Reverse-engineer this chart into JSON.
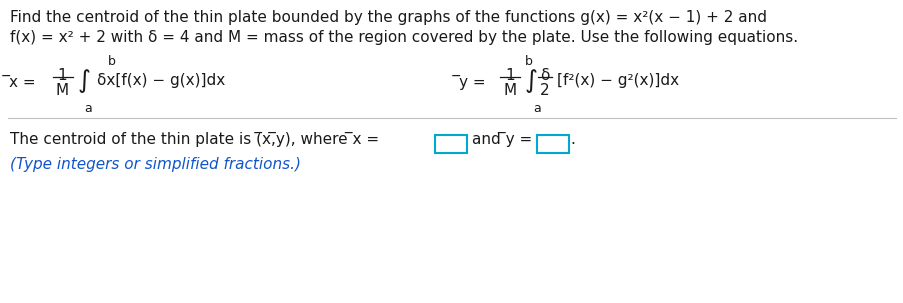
{
  "line1": "Find the centroid of the thin plate bounded by the graphs of the functions g(x) = x²(x − 1) + 2 and",
  "line2": "f(x) = x² + 2 with δ = 4 and M = mass of the region covered by the plate. Use the following equations.",
  "bottom_line": "The centroid of the thin plate is (̅x,̅y), where ̅x =",
  "bottom_and": "and ̅y =",
  "bottom_period": ".",
  "bottom_sub": "(Type integers or simplified fractions.)",
  "bg_color": "#ffffff",
  "text_color": "#1a1a1a",
  "blue_color": "#1155cc",
  "box_color": "#00aacc",
  "divider_color": "#c0c0c0",
  "fs_main": 11,
  "fs_small": 9,
  "fs_integral": 18
}
